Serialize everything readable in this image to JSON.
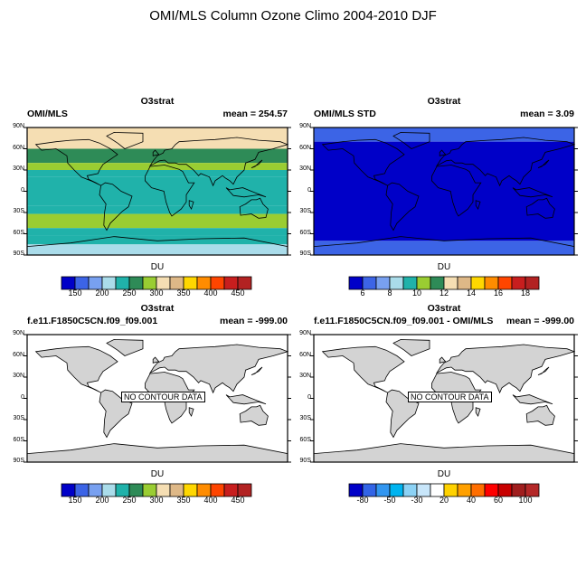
{
  "title": "OMI/MLS Column Ozone Climo 2004-2010 DJF",
  "chart_data": [
    {
      "type": "heatmap",
      "title": "O3strat",
      "left_label": "OMI/MLS",
      "right_label": "mean = 254.57",
      "lat_ticks": [
        "90N",
        "60N",
        "30N",
        "0",
        "30S",
        "60S",
        "90S"
      ],
      "units": "DU",
      "colorbar_labels": [
        "150",
        "200",
        "250",
        "300",
        "350",
        "400",
        "450"
      ],
      "bands": [
        {
          "lat_from": 90,
          "lat_to": 60,
          "band": "300-325"
        },
        {
          "lat_from": 60,
          "lat_to": 40,
          "band": "275-300"
        },
        {
          "lat_from": 40,
          "lat_to": 30,
          "band": "250-275"
        },
        {
          "lat_from": 30,
          "lat_to": 20,
          "band": "225-250"
        },
        {
          "lat_from": 20,
          "lat_to": -20,
          "band": "200-225"
        },
        {
          "lat_from": -20,
          "lat_to": -32,
          "band": "225-250"
        },
        {
          "lat_from": -32,
          "lat_to": -52,
          "band": "250-275"
        },
        {
          "lat_from": -52,
          "lat_to": -62,
          "band": "225-250"
        },
        {
          "lat_from": -62,
          "lat_to": -75,
          "band": "200-225"
        },
        {
          "lat_from": -75,
          "lat_to": -90,
          "band": "175-200"
        }
      ]
    },
    {
      "type": "heatmap",
      "title": "O3strat",
      "left_label": "OMI/MLS STD",
      "right_label": "mean =    3.09",
      "lat_ticks": [
        "90N",
        "60N",
        "30N",
        "0",
        "30S",
        "60S",
        "90S"
      ],
      "units": "DU",
      "colorbar_labels": [
        "6",
        "8",
        "10",
        "12",
        "14",
        "16",
        "18"
      ],
      "bands": [
        {
          "lat_from": 90,
          "lat_to": 70,
          "band": "6-7"
        },
        {
          "lat_from": 70,
          "lat_to": -70,
          "band": "<5"
        },
        {
          "lat_from": -70,
          "lat_to": -90,
          "band": "6-7"
        }
      ]
    },
    {
      "type": "heatmap",
      "title": "O3strat",
      "left_label": "f.e11.F1850C5CN.f09_f09.001",
      "right_label": "mean = -999.00",
      "annotation": "NO CONTOUR DATA",
      "lat_ticks": [
        "90N",
        "60N",
        "30N",
        "0",
        "30S",
        "60S",
        "90S"
      ],
      "units": "DU",
      "colorbar_labels": [
        "150",
        "200",
        "250",
        "300",
        "350",
        "400",
        "450"
      ]
    },
    {
      "type": "heatmap",
      "title": "O3strat",
      "left_label": "f.e11.F1850C5CN.f09_f09.001 - OMI/MLS",
      "right_label": "mean = -999.00",
      "annotation": "NO CONTOUR DATA",
      "lat_ticks": [
        "90N",
        "60N",
        "30N",
        "0",
        "30S",
        "60S",
        "90S"
      ],
      "units": "DU",
      "colorbar_labels": [
        "-80",
        "-50",
        "-30",
        "20",
        "40",
        "60",
        "100"
      ]
    }
  ],
  "colors": {
    "ozone_scale": [
      "#0000c8",
      "#3c64e6",
      "#78a0f0",
      "#aadcea",
      "#20b2aa",
      "#2e8b57",
      "#9acd32",
      "#f5deb3",
      "#deb887",
      "#ffd700",
      "#ff8c00",
      "#ff4500",
      "#c81e1e",
      "#b22222"
    ],
    "std_scale": [
      "#0000c8",
      "#3c64e6",
      "#78a0f0",
      "#aadcea",
      "#20b2aa",
      "#9acd32",
      "#2e8b57",
      "#f5deb3",
      "#deb887",
      "#ffd700",
      "#ff8c00",
      "#ff4500",
      "#c81e1e",
      "#b22222"
    ],
    "diff_scale": [
      "#0000c8",
      "#3264e6",
      "#3296f0",
      "#00b4f0",
      "#8cd2f5",
      "#c8e6fa",
      "#ffffff",
      "#ffd200",
      "#ffa000",
      "#ff6e00",
      "#ff0000",
      "#c80000",
      "#a01e1e",
      "#b42828"
    ],
    "land": "#d3d3d3"
  }
}
